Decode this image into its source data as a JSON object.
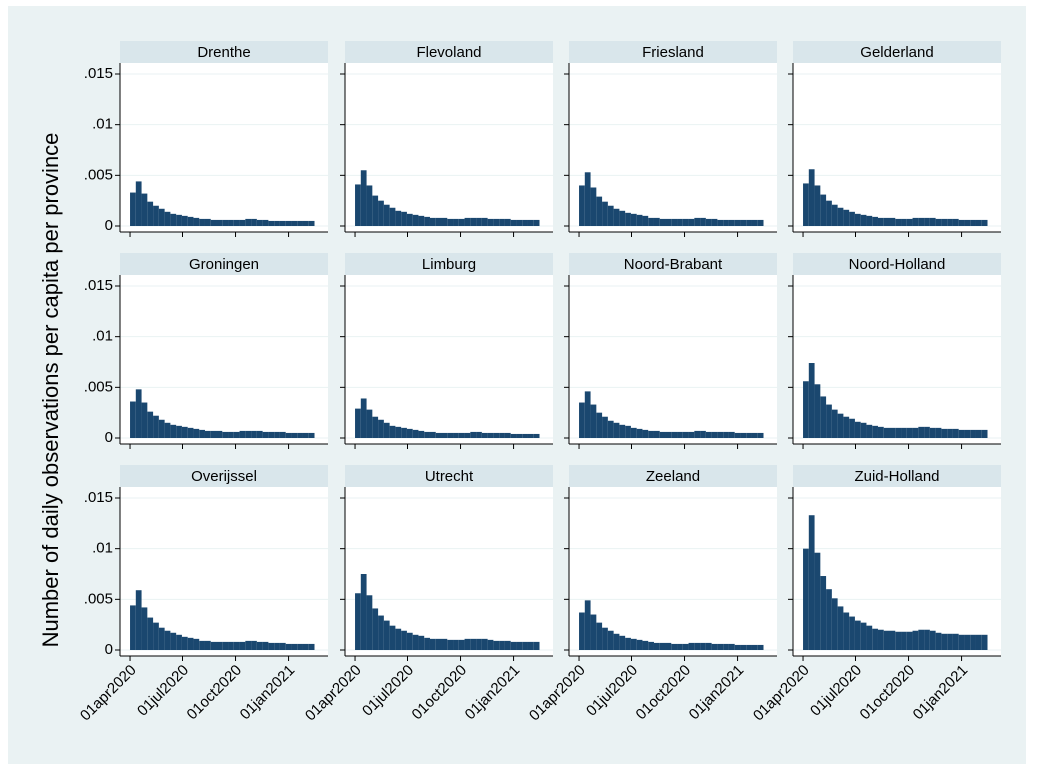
{
  "chart_data": {
    "type": "bar",
    "layout": "facets",
    "grid": true,
    "ylabel": "Number of daily observations per capita per province",
    "x": [
      "2020-04-01",
      "2020-04-11",
      "2020-04-21",
      "2020-05-01",
      "2020-05-11",
      "2020-05-21",
      "2020-05-31",
      "2020-06-10",
      "2020-06-20",
      "2020-06-30",
      "2020-07-10",
      "2020-07-20",
      "2020-07-30",
      "2020-08-09",
      "2020-08-19",
      "2020-08-29",
      "2020-09-08",
      "2020-09-18",
      "2020-09-28",
      "2020-10-08",
      "2020-10-18",
      "2020-10-28",
      "2020-11-07",
      "2020-11-17",
      "2020-11-27",
      "2020-12-07",
      "2020-12-17",
      "2020-12-27",
      "2021-01-06",
      "2021-01-16",
      "2021-01-26",
      "2021-02-05"
    ],
    "xlim": [
      "2020-03-25",
      "2021-02-28"
    ],
    "xticks": [
      {
        "value": "2020-04-01",
        "label": "01apr2020"
      },
      {
        "value": "2020-07-01",
        "label": "01jul2020"
      },
      {
        "value": "2020-10-01",
        "label": "01oct2020"
      },
      {
        "value": "2021-01-01",
        "label": "01jan2021"
      }
    ],
    "ylim": [
      0,
      0.015
    ],
    "yticks": [
      0,
      {
        "value": 0.005,
        "label": ".005"
      },
      {
        "value": 0.01,
        "label": ".01"
      },
      {
        "value": 0.015,
        "label": ".015"
      }
    ],
    "series": [
      {
        "name": "Drenthe",
        "color": "#1a476f",
        "values": [
          0.0033,
          0.0044,
          0.0032,
          0.0024,
          0.002,
          0.0017,
          0.0014,
          0.0012,
          0.0011,
          0.001,
          0.0009,
          0.0008,
          0.0007,
          0.0007,
          0.0006,
          0.0006,
          0.0006,
          0.0006,
          0.0006,
          0.0006,
          0.0007,
          0.0007,
          0.0006,
          0.0006,
          0.0005,
          0.0005,
          0.0005,
          0.0005,
          0.0005,
          0.0005,
          0.0005,
          0.0005
        ]
      },
      {
        "name": "Flevoland",
        "color": "#1a476f",
        "values": [
          0.0041,
          0.0055,
          0.004,
          0.003,
          0.0025,
          0.0021,
          0.0018,
          0.0015,
          0.0014,
          0.0012,
          0.0011,
          0.001,
          0.0009,
          0.0008,
          0.0008,
          0.0008,
          0.0007,
          0.0007,
          0.0007,
          0.0008,
          0.0008,
          0.0008,
          0.0008,
          0.0007,
          0.0007,
          0.0007,
          0.0007,
          0.0006,
          0.0006,
          0.0006,
          0.0006,
          0.0006
        ]
      },
      {
        "name": "Friesland",
        "color": "#1a476f",
        "values": [
          0.004,
          0.0053,
          0.0038,
          0.0029,
          0.0024,
          0.002,
          0.0017,
          0.0015,
          0.0013,
          0.0012,
          0.0011,
          0.001,
          0.0008,
          0.0008,
          0.0007,
          0.0007,
          0.0007,
          0.0007,
          0.0007,
          0.0007,
          0.0008,
          0.0008,
          0.0007,
          0.0007,
          0.0006,
          0.0006,
          0.0006,
          0.0006,
          0.0006,
          0.0006,
          0.0006,
          0.0006
        ]
      },
      {
        "name": "Gelderland",
        "color": "#1a476f",
        "values": [
          0.0042,
          0.0056,
          0.004,
          0.0031,
          0.0025,
          0.0021,
          0.0018,
          0.0016,
          0.0014,
          0.0012,
          0.0011,
          0.001,
          0.0009,
          0.0008,
          0.0008,
          0.0008,
          0.0007,
          0.0007,
          0.0007,
          0.0008,
          0.0008,
          0.0008,
          0.0008,
          0.0007,
          0.0007,
          0.0007,
          0.0007,
          0.0006,
          0.0006,
          0.0006,
          0.0006,
          0.0006
        ]
      },
      {
        "name": "Groningen",
        "color": "#1a476f",
        "values": [
          0.0036,
          0.0048,
          0.0035,
          0.0026,
          0.0022,
          0.0018,
          0.0015,
          0.0013,
          0.0012,
          0.0011,
          0.001,
          0.0009,
          0.0008,
          0.0007,
          0.0007,
          0.0007,
          0.0006,
          0.0006,
          0.0006,
          0.0007,
          0.0007,
          0.0007,
          0.0007,
          0.0006,
          0.0006,
          0.0006,
          0.0006,
          0.0005,
          0.0005,
          0.0005,
          0.0005,
          0.0005
        ]
      },
      {
        "name": "Limburg",
        "color": "#1a476f",
        "values": [
          0.0029,
          0.0039,
          0.0028,
          0.0021,
          0.0018,
          0.0015,
          0.0012,
          0.0011,
          0.001,
          0.0009,
          0.0008,
          0.0007,
          0.0006,
          0.0006,
          0.0005,
          0.0005,
          0.0005,
          0.0005,
          0.0005,
          0.0005,
          0.0006,
          0.0006,
          0.0005,
          0.0005,
          0.0005,
          0.0005,
          0.0005,
          0.0004,
          0.0004,
          0.0004,
          0.0004,
          0.0004
        ]
      },
      {
        "name": "Noord-Brabant",
        "color": "#1a476f",
        "values": [
          0.0035,
          0.0046,
          0.0033,
          0.0025,
          0.0021,
          0.0017,
          0.0015,
          0.0013,
          0.0012,
          0.001,
          0.0009,
          0.0008,
          0.0007,
          0.0007,
          0.0006,
          0.0006,
          0.0006,
          0.0006,
          0.0006,
          0.0006,
          0.0007,
          0.0007,
          0.0006,
          0.0006,
          0.0006,
          0.0006,
          0.0006,
          0.0005,
          0.0005,
          0.0005,
          0.0005,
          0.0005
        ]
      },
      {
        "name": "Noord-Holland",
        "color": "#1a476f",
        "values": [
          0.0056,
          0.0074,
          0.0053,
          0.0041,
          0.0033,
          0.0028,
          0.0024,
          0.0021,
          0.0019,
          0.0016,
          0.0015,
          0.0013,
          0.0012,
          0.0011,
          0.001,
          0.001,
          0.001,
          0.001,
          0.001,
          0.001,
          0.0011,
          0.0011,
          0.001,
          0.001,
          0.0009,
          0.0009,
          0.0009,
          0.0008,
          0.0008,
          0.0008,
          0.0008,
          0.0008
        ]
      },
      {
        "name": "Overijssel",
        "color": "#1a476f",
        "values": [
          0.0044,
          0.0059,
          0.0042,
          0.0032,
          0.0027,
          0.0022,
          0.0019,
          0.0017,
          0.0015,
          0.0013,
          0.0012,
          0.0011,
          0.0009,
          0.0009,
          0.0008,
          0.0008,
          0.0008,
          0.0008,
          0.0008,
          0.0008,
          0.0009,
          0.0009,
          0.0008,
          0.0008,
          0.0007,
          0.0007,
          0.0007,
          0.0006,
          0.0006,
          0.0006,
          0.0006,
          0.0006
        ]
      },
      {
        "name": "Utrecht",
        "color": "#1a476f",
        "values": [
          0.0056,
          0.0075,
          0.0054,
          0.0041,
          0.0034,
          0.0029,
          0.0024,
          0.0021,
          0.0019,
          0.0017,
          0.0015,
          0.0014,
          0.0012,
          0.0011,
          0.0011,
          0.0011,
          0.001,
          0.001,
          0.001,
          0.0011,
          0.0011,
          0.0011,
          0.0011,
          0.001,
          0.0009,
          0.0009,
          0.0009,
          0.0008,
          0.0008,
          0.0008,
          0.0008,
          0.0008
        ]
      },
      {
        "name": "Zeeland",
        "color": "#1a476f",
        "values": [
          0.0037,
          0.0049,
          0.0035,
          0.0027,
          0.0022,
          0.0019,
          0.0016,
          0.0014,
          0.0012,
          0.0011,
          0.001,
          0.0009,
          0.0008,
          0.0007,
          0.0007,
          0.0007,
          0.0006,
          0.0006,
          0.0006,
          0.0007,
          0.0007,
          0.0007,
          0.0007,
          0.0006,
          0.0006,
          0.0006,
          0.0006,
          0.0005,
          0.0005,
          0.0005,
          0.0005,
          0.0005
        ]
      },
      {
        "name": "Zuid-Holland",
        "color": "#1a476f",
        "values": [
          0.01,
          0.0133,
          0.0096,
          0.0073,
          0.006,
          0.0051,
          0.0043,
          0.0037,
          0.0033,
          0.0029,
          0.0027,
          0.0024,
          0.0021,
          0.002,
          0.0019,
          0.0019,
          0.0018,
          0.0018,
          0.0018,
          0.0019,
          0.002,
          0.002,
          0.0019,
          0.0017,
          0.0016,
          0.0016,
          0.0016,
          0.0015,
          0.0015,
          0.0015,
          0.0015,
          0.0015
        ]
      }
    ]
  }
}
